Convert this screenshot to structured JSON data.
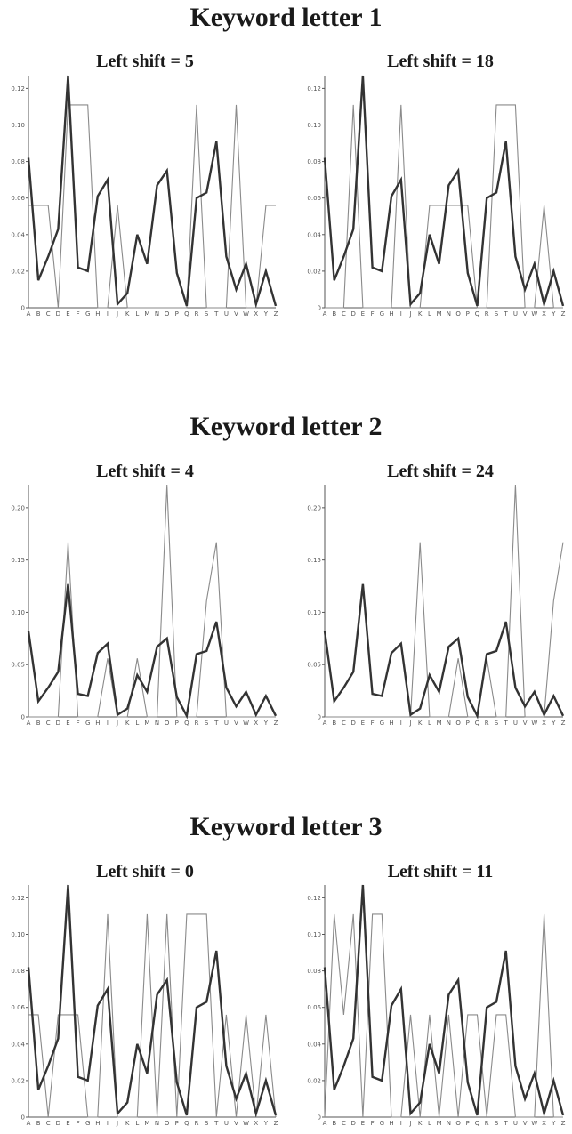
{
  "letters": [
    "A",
    "B",
    "C",
    "D",
    "E",
    "F",
    "G",
    "H",
    "I",
    "J",
    "K",
    "L",
    "M",
    "N",
    "O",
    "P",
    "Q",
    "R",
    "S",
    "T",
    "U",
    "V",
    "W",
    "X",
    "Y",
    "Z"
  ],
  "english_freq": [
    0.082,
    0.015,
    0.028,
    0.043,
    0.127,
    0.022,
    0.02,
    0.061,
    0.07,
    0.002,
    0.008,
    0.04,
    0.024,
    0.067,
    0.075,
    0.019,
    0.001,
    0.06,
    0.063,
    0.091,
    0.028,
    0.01,
    0.024,
    0.002,
    0.02,
    0.001
  ],
  "groups": [
    {
      "title": "Keyword letter 1",
      "panels": [
        {
          "title": "Left shift = 5",
          "yticks": [
            "0",
            "0.02",
            "0.04",
            "0.06",
            "0.08",
            "0.10",
            "0.12"
          ],
          "ymax": 0.127,
          "observed": [
            0.056,
            0.056,
            0.056,
            0.0,
            0.111,
            0.111,
            0.111,
            0.0,
            0.0,
            0.056,
            0.0,
            0.0,
            0.0,
            0.0,
            0.0,
            0.0,
            0.0,
            0.111,
            0.0,
            0.0,
            0.0,
            0.111,
            0.0,
            0.0,
            0.056,
            0.056
          ]
        },
        {
          "title": "Left shift = 18",
          "yticks": [
            "0",
            "0.02",
            "0.04",
            "0.06",
            "0.08",
            "0.10",
            "0.12"
          ],
          "ymax": 0.127,
          "observed": [
            0.0,
            0.0,
            0.0,
            0.111,
            0.0,
            0.0,
            0.0,
            0.0,
            0.111,
            0.0,
            0.0,
            0.056,
            0.056,
            0.056,
            0.056,
            0.056,
            0.0,
            0.0,
            0.111,
            0.111,
            0.111,
            0.0,
            0.0,
            0.056,
            0.0,
            0.0
          ]
        }
      ]
    },
    {
      "title": "Keyword letter 2",
      "panels": [
        {
          "title": "Left shift = 4",
          "yticks": [
            "0",
            "0.05",
            "0.10",
            "0.15",
            "0.20"
          ],
          "ymax": 0.222,
          "observed": [
            0.0,
            0.0,
            0.0,
            0.0,
            0.167,
            0.0,
            0.0,
            0.0,
            0.056,
            0.0,
            0.0,
            0.056,
            0.0,
            0.0,
            0.222,
            0.0,
            0.0,
            0.0,
            0.111,
            0.167,
            0.0,
            0.0,
            0.0,
            0.0,
            0.0,
            0.0
          ]
        },
        {
          "title": "Left shift = 24",
          "yticks": [
            "0",
            "0.05",
            "0.10",
            "0.15",
            "0.20"
          ],
          "ymax": 0.222,
          "observed": [
            0.0,
            0.0,
            0.0,
            0.0,
            0.0,
            0.0,
            0.0,
            0.0,
            0.0,
            0.0,
            0.167,
            0.0,
            0.0,
            0.0,
            0.056,
            0.0,
            0.0,
            0.056,
            0.0,
            0.0,
            0.222,
            0.0,
            0.0,
            0.0,
            0.111,
            0.167
          ]
        }
      ]
    },
    {
      "title": "Keyword letter 3",
      "panels": [
        {
          "title": "Left shift = 0",
          "yticks": [
            "0",
            "0.02",
            "0.04",
            "0.06",
            "0.08",
            "0.10",
            "0.12"
          ],
          "ymax": 0.127,
          "observed": [
            0.056,
            0.056,
            0.0,
            0.056,
            0.056,
            0.056,
            0.0,
            0.0,
            0.111,
            0.0,
            0.0,
            0.0,
            0.111,
            0.0,
            0.111,
            0.0,
            0.111,
            0.111,
            0.111,
            0.0,
            0.056,
            0.0,
            0.056,
            0.0,
            0.056,
            0.0
          ]
        },
        {
          "title": "Left shift = 11",
          "yticks": [
            "0",
            "0.02",
            "0.04",
            "0.06",
            "0.08",
            "0.10",
            "0.12"
          ],
          "ymax": 0.127,
          "observed": [
            0.0,
            0.111,
            0.056,
            0.111,
            0.0,
            0.111,
            0.111,
            0.0,
            0.0,
            0.056,
            0.0,
            0.056,
            0.0,
            0.056,
            0.0,
            0.056,
            0.056,
            0.0,
            0.056,
            0.056,
            0.0,
            0.0,
            0.0,
            0.111,
            0.0,
            0.0
          ]
        }
      ]
    }
  ],
  "chart_data": [
    {
      "type": "line",
      "title": "Left shift = 5",
      "categories": [
        "A",
        "B",
        "C",
        "D",
        "E",
        "F",
        "G",
        "H",
        "I",
        "J",
        "K",
        "L",
        "M",
        "N",
        "O",
        "P",
        "Q",
        "R",
        "S",
        "T",
        "U",
        "V",
        "W",
        "X",
        "Y",
        "Z"
      ],
      "ylim": [
        0,
        0.127
      ],
      "series": [
        {
          "values": [
            0.082,
            0.015,
            0.028,
            0.043,
            0.127,
            0.022,
            0.02,
            0.061,
            0.07,
            0.002,
            0.008,
            0.04,
            0.024,
            0.067,
            0.075,
            0.019,
            0.001,
            0.06,
            0.063,
            0.091,
            0.028,
            0.01,
            0.024,
            0.002,
            0.02,
            0.001
          ]
        },
        {
          "values": [
            0.056,
            0.056,
            0.056,
            0.0,
            0.111,
            0.111,
            0.111,
            0.0,
            0.0,
            0.056,
            0.0,
            0.0,
            0.0,
            0.0,
            0.0,
            0.0,
            0.0,
            0.111,
            0.0,
            0.0,
            0.0,
            0.111,
            0.0,
            0.0,
            0.056,
            0.056
          ]
        }
      ]
    },
    {
      "type": "line",
      "title": "Left shift = 18",
      "categories": [
        "A",
        "B",
        "C",
        "D",
        "E",
        "F",
        "G",
        "H",
        "I",
        "J",
        "K",
        "L",
        "M",
        "N",
        "O",
        "P",
        "Q",
        "R",
        "S",
        "T",
        "U",
        "V",
        "W",
        "X",
        "Y",
        "Z"
      ],
      "ylim": [
        0,
        0.127
      ],
      "series": [
        {
          "values": [
            0.082,
            0.015,
            0.028,
            0.043,
            0.127,
            0.022,
            0.02,
            0.061,
            0.07,
            0.002,
            0.008,
            0.04,
            0.024,
            0.067,
            0.075,
            0.019,
            0.001,
            0.06,
            0.063,
            0.091,
            0.028,
            0.01,
            0.024,
            0.002,
            0.02,
            0.001
          ]
        },
        {
          "values": [
            0.0,
            0.0,
            0.0,
            0.111,
            0.0,
            0.0,
            0.0,
            0.0,
            0.111,
            0.0,
            0.0,
            0.056,
            0.056,
            0.056,
            0.056,
            0.056,
            0.0,
            0.0,
            0.111,
            0.111,
            0.111,
            0.0,
            0.0,
            0.056,
            0.0,
            0.0
          ]
        }
      ]
    },
    {
      "type": "line",
      "title": "Left shift = 4",
      "categories": [
        "A",
        "B",
        "C",
        "D",
        "E",
        "F",
        "G",
        "H",
        "I",
        "J",
        "K",
        "L",
        "M",
        "N",
        "O",
        "P",
        "Q",
        "R",
        "S",
        "T",
        "U",
        "V",
        "W",
        "X",
        "Y",
        "Z"
      ],
      "ylim": [
        0,
        0.222
      ],
      "series": [
        {
          "values": [
            0.082,
            0.015,
            0.028,
            0.043,
            0.127,
            0.022,
            0.02,
            0.061,
            0.07,
            0.002,
            0.008,
            0.04,
            0.024,
            0.067,
            0.075,
            0.019,
            0.001,
            0.06,
            0.063,
            0.091,
            0.028,
            0.01,
            0.024,
            0.002,
            0.02,
            0.001
          ]
        },
        {
          "values": [
            0.0,
            0.0,
            0.0,
            0.0,
            0.167,
            0.0,
            0.0,
            0.0,
            0.056,
            0.0,
            0.0,
            0.056,
            0.0,
            0.0,
            0.222,
            0.0,
            0.0,
            0.0,
            0.111,
            0.167,
            0.0,
            0.0,
            0.0,
            0.0,
            0.0,
            0.0
          ]
        }
      ]
    },
    {
      "type": "line",
      "title": "Left shift = 24",
      "categories": [
        "A",
        "B",
        "C",
        "D",
        "E",
        "F",
        "G",
        "H",
        "I",
        "J",
        "K",
        "L",
        "M",
        "N",
        "O",
        "P",
        "Q",
        "R",
        "S",
        "T",
        "U",
        "V",
        "W",
        "X",
        "Y",
        "Z"
      ],
      "ylim": [
        0,
        0.222
      ],
      "series": [
        {
          "values": [
            0.082,
            0.015,
            0.028,
            0.043,
            0.127,
            0.022,
            0.02,
            0.061,
            0.07,
            0.002,
            0.008,
            0.04,
            0.024,
            0.067,
            0.075,
            0.019,
            0.001,
            0.06,
            0.063,
            0.091,
            0.028,
            0.01,
            0.024,
            0.002,
            0.02,
            0.001
          ]
        },
        {
          "values": [
            0.0,
            0.0,
            0.0,
            0.0,
            0.0,
            0.0,
            0.0,
            0.0,
            0.0,
            0.0,
            0.167,
            0.0,
            0.0,
            0.0,
            0.056,
            0.0,
            0.0,
            0.056,
            0.0,
            0.0,
            0.222,
            0.0,
            0.0,
            0.0,
            0.111,
            0.167
          ]
        }
      ]
    },
    {
      "type": "line",
      "title": "Left shift = 0",
      "categories": [
        "A",
        "B",
        "C",
        "D",
        "E",
        "F",
        "G",
        "H",
        "I",
        "J",
        "K",
        "L",
        "M",
        "N",
        "O",
        "P",
        "Q",
        "R",
        "S",
        "T",
        "U",
        "V",
        "W",
        "X",
        "Y",
        "Z"
      ],
      "ylim": [
        0,
        0.127
      ],
      "series": [
        {
          "values": [
            0.082,
            0.015,
            0.028,
            0.043,
            0.127,
            0.022,
            0.02,
            0.061,
            0.07,
            0.002,
            0.008,
            0.04,
            0.024,
            0.067,
            0.075,
            0.019,
            0.001,
            0.06,
            0.063,
            0.091,
            0.028,
            0.01,
            0.024,
            0.002,
            0.02,
            0.001
          ]
        },
        {
          "values": [
            0.056,
            0.056,
            0.0,
            0.056,
            0.056,
            0.056,
            0.0,
            0.0,
            0.111,
            0.0,
            0.0,
            0.0,
            0.111,
            0.0,
            0.111,
            0.0,
            0.111,
            0.111,
            0.111,
            0.0,
            0.056,
            0.0,
            0.056,
            0.0,
            0.056,
            0.0
          ]
        }
      ]
    },
    {
      "type": "line",
      "title": "Left shift = 11",
      "categories": [
        "A",
        "B",
        "C",
        "D",
        "E",
        "F",
        "G",
        "H",
        "I",
        "J",
        "K",
        "L",
        "M",
        "N",
        "O",
        "P",
        "Q",
        "R",
        "S",
        "T",
        "U",
        "V",
        "W",
        "X",
        "Y",
        "Z"
      ],
      "ylim": [
        0,
        0.127
      ],
      "series": [
        {
          "values": [
            0.082,
            0.015,
            0.028,
            0.043,
            0.127,
            0.022,
            0.02,
            0.061,
            0.07,
            0.002,
            0.008,
            0.04,
            0.024,
            0.067,
            0.075,
            0.019,
            0.001,
            0.06,
            0.063,
            0.091,
            0.028,
            0.01,
            0.024,
            0.002,
            0.02,
            0.001
          ]
        },
        {
          "values": [
            0.0,
            0.111,
            0.056,
            0.111,
            0.0,
            0.111,
            0.111,
            0.0,
            0.0,
            0.056,
            0.0,
            0.056,
            0.0,
            0.056,
            0.0,
            0.056,
            0.056,
            0.0,
            0.056,
            0.056,
            0.0,
            0.0,
            0.0,
            0.111,
            0.0,
            0.0
          ]
        }
      ]
    }
  ]
}
